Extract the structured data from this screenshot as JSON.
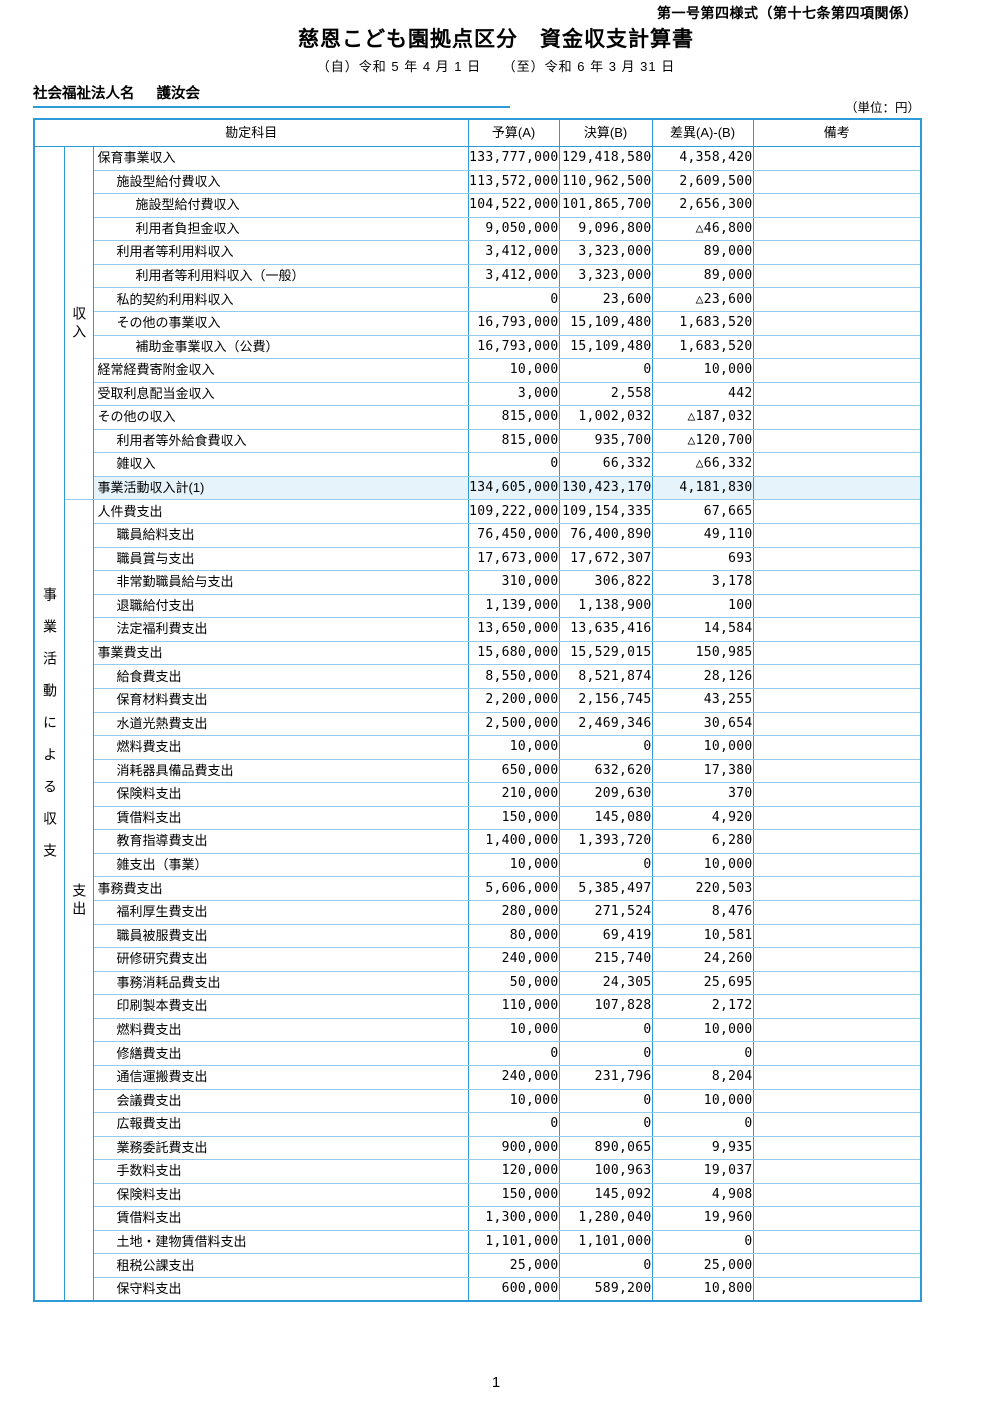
{
  "page": {
    "form_number": "第一号第四様式（第十七条第四項関係）",
    "title": "慈恩こども園拠点区分　資金収支計算書",
    "period": "（自）令和  5 年  4 月  1 日　　（至）令和  6 年  3 月 31 日",
    "corporation_label": "社会福祉法人名",
    "corporation_name": "護汝会",
    "unit_note": "（単位：円）",
    "page_number": "1"
  },
  "colors": {
    "table_border": "#2e9bd8",
    "row_line": "#93cbed",
    "total_row_bg": "#e6f3fb",
    "underline": "#2e9bd8"
  },
  "table": {
    "headers": {
      "account": "勘定科目",
      "budget": "予算(A)",
      "actual": "決算(B)",
      "difference": "差異(A)-(B)",
      "remarks": "備考"
    },
    "left_label": "事業活動による収支",
    "sections": [
      {
        "label": "収入",
        "rows": [
          {
            "name": "保育事業収入",
            "indent": 0,
            "budget": "133,777,000",
            "actual": "129,418,580",
            "diff": "4,358,420"
          },
          {
            "name": "施設型給付費収入",
            "indent": 1,
            "budget": "113,572,000",
            "actual": "110,962,500",
            "diff": "2,609,500"
          },
          {
            "name": "施設型給付費収入",
            "indent": 2,
            "budget": "104,522,000",
            "actual": "101,865,700",
            "diff": "2,656,300"
          },
          {
            "name": "利用者負担金収入",
            "indent": 2,
            "budget": "9,050,000",
            "actual": "9,096,800",
            "diff": "△46,800"
          },
          {
            "name": "利用者等利用料収入",
            "indent": 1,
            "budget": "3,412,000",
            "actual": "3,323,000",
            "diff": "89,000"
          },
          {
            "name": "利用者等利用料収入（一般）",
            "indent": 2,
            "budget": "3,412,000",
            "actual": "3,323,000",
            "diff": "89,000"
          },
          {
            "name": "私的契約利用料収入",
            "indent": 1,
            "budget": "0",
            "actual": "23,600",
            "diff": "△23,600"
          },
          {
            "name": "その他の事業収入",
            "indent": 1,
            "budget": "16,793,000",
            "actual": "15,109,480",
            "diff": "1,683,520"
          },
          {
            "name": "補助金事業収入（公費）",
            "indent": 2,
            "budget": "16,793,000",
            "actual": "15,109,480",
            "diff": "1,683,520"
          },
          {
            "name": "経常経費寄附金収入",
            "indent": 0,
            "budget": "10,000",
            "actual": "0",
            "diff": "10,000"
          },
          {
            "name": "受取利息配当金収入",
            "indent": 0,
            "budget": "3,000",
            "actual": "2,558",
            "diff": "442"
          },
          {
            "name": "その他の収入",
            "indent": 0,
            "budget": "815,000",
            "actual": "1,002,032",
            "diff": "△187,032"
          },
          {
            "name": "利用者等外給食費収入",
            "indent": 1,
            "budget": "815,000",
            "actual": "935,700",
            "diff": "△120,700"
          },
          {
            "name": "雑収入",
            "indent": 1,
            "budget": "0",
            "actual": "66,332",
            "diff": "△66,332"
          },
          {
            "name": "事業活動収入計(1)",
            "indent": 0,
            "budget": "134,605,000",
            "actual": "130,423,170",
            "diff": "4,181,830",
            "highlight": true
          }
        ]
      },
      {
        "label": "支出",
        "rows": [
          {
            "name": "人件費支出",
            "indent": 0,
            "budget": "109,222,000",
            "actual": "109,154,335",
            "diff": "67,665"
          },
          {
            "name": "職員給料支出",
            "indent": 1,
            "budget": "76,450,000",
            "actual": "76,400,890",
            "diff": "49,110"
          },
          {
            "name": "職員賞与支出",
            "indent": 1,
            "budget": "17,673,000",
            "actual": "17,672,307",
            "diff": "693"
          },
          {
            "name": "非常勤職員給与支出",
            "indent": 1,
            "budget": "310,000",
            "actual": "306,822",
            "diff": "3,178"
          },
          {
            "name": "退職給付支出",
            "indent": 1,
            "budget": "1,139,000",
            "actual": "1,138,900",
            "diff": "100"
          },
          {
            "name": "法定福利費支出",
            "indent": 1,
            "budget": "13,650,000",
            "actual": "13,635,416",
            "diff": "14,584"
          },
          {
            "name": "事業費支出",
            "indent": 0,
            "budget": "15,680,000",
            "actual": "15,529,015",
            "diff": "150,985"
          },
          {
            "name": "給食費支出",
            "indent": 1,
            "budget": "8,550,000",
            "actual": "8,521,874",
            "diff": "28,126"
          },
          {
            "name": "保育材料費支出",
            "indent": 1,
            "budget": "2,200,000",
            "actual": "2,156,745",
            "diff": "43,255"
          },
          {
            "name": "水道光熱費支出",
            "indent": 1,
            "budget": "2,500,000",
            "actual": "2,469,346",
            "diff": "30,654"
          },
          {
            "name": "燃料費支出",
            "indent": 1,
            "budget": "10,000",
            "actual": "0",
            "diff": "10,000"
          },
          {
            "name": "消耗器具備品費支出",
            "indent": 1,
            "budget": "650,000",
            "actual": "632,620",
            "diff": "17,380"
          },
          {
            "name": "保険料支出",
            "indent": 1,
            "budget": "210,000",
            "actual": "209,630",
            "diff": "370"
          },
          {
            "name": "賃借料支出",
            "indent": 1,
            "budget": "150,000",
            "actual": "145,080",
            "diff": "4,920"
          },
          {
            "name": "教育指導費支出",
            "indent": 1,
            "budget": "1,400,000",
            "actual": "1,393,720",
            "diff": "6,280"
          },
          {
            "name": "雑支出（事業）",
            "indent": 1,
            "budget": "10,000",
            "actual": "0",
            "diff": "10,000"
          },
          {
            "name": "事務費支出",
            "indent": 0,
            "budget": "5,606,000",
            "actual": "5,385,497",
            "diff": "220,503"
          },
          {
            "name": "福利厚生費支出",
            "indent": 1,
            "budget": "280,000",
            "actual": "271,524",
            "diff": "8,476"
          },
          {
            "name": "職員被服費支出",
            "indent": 1,
            "budget": "80,000",
            "actual": "69,419",
            "diff": "10,581"
          },
          {
            "name": "研修研究費支出",
            "indent": 1,
            "budget": "240,000",
            "actual": "215,740",
            "diff": "24,260"
          },
          {
            "name": "事務消耗品費支出",
            "indent": 1,
            "budget": "50,000",
            "actual": "24,305",
            "diff": "25,695"
          },
          {
            "name": "印刷製本費支出",
            "indent": 1,
            "budget": "110,000",
            "actual": "107,828",
            "diff": "2,172"
          },
          {
            "name": "燃料費支出",
            "indent": 1,
            "budget": "10,000",
            "actual": "0",
            "diff": "10,000"
          },
          {
            "name": "修繕費支出",
            "indent": 1,
            "budget": "0",
            "actual": "0",
            "diff": "0"
          },
          {
            "name": "通信運搬費支出",
            "indent": 1,
            "budget": "240,000",
            "actual": "231,796",
            "diff": "8,204"
          },
          {
            "name": "会議費支出",
            "indent": 1,
            "budget": "10,000",
            "actual": "0",
            "diff": "10,000"
          },
          {
            "name": "広報費支出",
            "indent": 1,
            "budget": "0",
            "actual": "0",
            "diff": "0"
          },
          {
            "name": "業務委託費支出",
            "indent": 1,
            "budget": "900,000",
            "actual": "890,065",
            "diff": "9,935"
          },
          {
            "name": "手数料支出",
            "indent": 1,
            "budget": "120,000",
            "actual": "100,963",
            "diff": "19,037"
          },
          {
            "name": "保険料支出",
            "indent": 1,
            "budget": "150,000",
            "actual": "145,092",
            "diff": "4,908"
          },
          {
            "name": "賃借料支出",
            "indent": 1,
            "budget": "1,300,000",
            "actual": "1,280,040",
            "diff": "19,960"
          },
          {
            "name": "土地・建物賃借料支出",
            "indent": 1,
            "budget": "1,101,000",
            "actual": "1,101,000",
            "diff": "0"
          },
          {
            "name": "租税公課支出",
            "indent": 1,
            "budget": "25,000",
            "actual": "0",
            "diff": "25,000"
          },
          {
            "name": "保守料支出",
            "indent": 1,
            "budget": "600,000",
            "actual": "589,200",
            "diff": "10,800"
          }
        ]
      }
    ]
  }
}
